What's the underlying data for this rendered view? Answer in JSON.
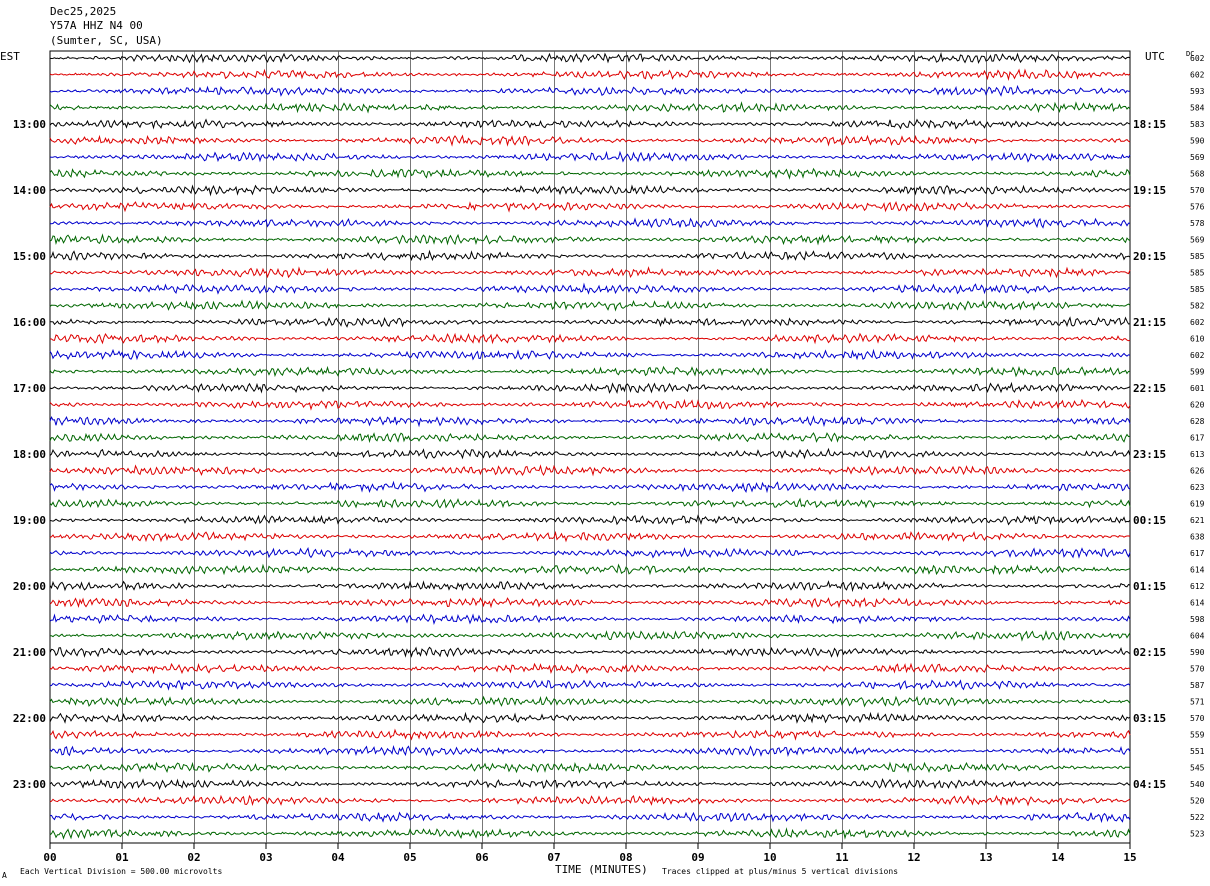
{
  "header": {
    "date": "Dec25,2025",
    "station": "Y57A HHZ N4 00",
    "location": "(Sumter, SC, USA)"
  },
  "labels": {
    "left_tz": "EST",
    "right_tz": "UTC",
    "dc": "DC",
    "xlabel": "TIME (MINUTES)",
    "scale_note": "Each Vertical Division =  500.00 microvolts",
    "clip_note": "Traces clipped at plus/minus 5 vertical divisions",
    "footer_mark": "A"
  },
  "colors": {
    "trace_cycle": [
      "#000000",
      "#dd0000",
      "#0000cc",
      "#006600"
    ],
    "grid": "#000000"
  },
  "chart_data": {
    "type": "line",
    "x_ticks": [
      "00",
      "01",
      "02",
      "03",
      "04",
      "05",
      "06",
      "07",
      "08",
      "09",
      "10",
      "11",
      "12",
      "13",
      "14",
      "15"
    ],
    "xlim": [
      0,
      15
    ],
    "rows_per_hour": 4,
    "left_hour_labels": [
      "13:00",
      "14:00",
      "15:00",
      "16:00",
      "17:00",
      "18:00",
      "19:00",
      "20:00",
      "21:00",
      "22:00",
      "23:00"
    ],
    "right_hour_labels": [
      "18:15",
      "19:15",
      "20:15",
      "21:15",
      "22:15",
      "23:15",
      "00:15",
      "01:15",
      "02:15",
      "03:15",
      "04:15"
    ],
    "dc_offsets": [
      602,
      602,
      593,
      584,
      583,
      590,
      569,
      568,
      570,
      576,
      578,
      569,
      585,
      585,
      585,
      582,
      602,
      610,
      602,
      599,
      601,
      620,
      628,
      617,
      613,
      626,
      623,
      619,
      621,
      638,
      617,
      614,
      612,
      614,
      598,
      604,
      590,
      570,
      587,
      571,
      570,
      559,
      551,
      545,
      540,
      520,
      522,
      523
    ]
  }
}
